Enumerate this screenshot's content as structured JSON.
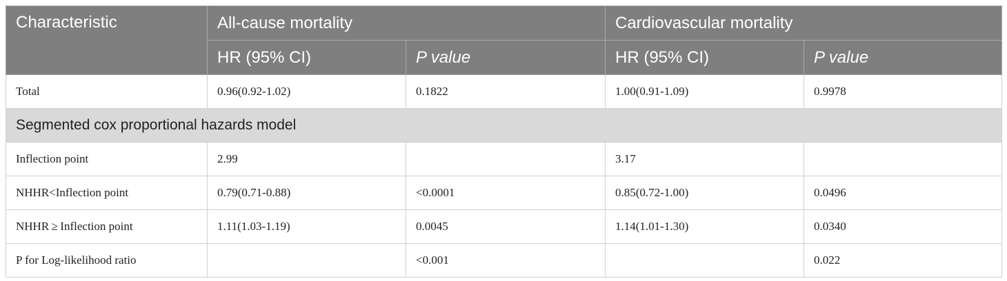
{
  "table": {
    "header": [
      [
        "Characteristic",
        "All-cause mortality",
        "Cardiovascular mortality"
      ],
      [
        "HR (95% CI)",
        "P value",
        "HR (95% CI)",
        "P value"
      ]
    ],
    "body": [
      {
        "cells": [
          "Total",
          "0.96(0.92-1.02)",
          "0.1822",
          "1.00(0.91-1.09)",
          "0.9978"
        ]
      },
      {
        "section": "Segmented cox proportional hazards model"
      },
      {
        "cells": [
          "Inflection point",
          "2.99",
          null,
          "3.17",
          null
        ]
      },
      {
        "cells": [
          "NHHR<Inflection point",
          "0.79(0.71-0.88)",
          "<0.0001",
          "0.85(0.72-1.00)",
          "0.0496"
        ]
      },
      {
        "cells": [
          "NHHR ≥ Inflection point",
          "1.11(1.03-1.19)",
          "0.0045",
          "1.14(1.01-1.30)",
          "0.0340"
        ]
      },
      {
        "cells": [
          "P for Log-likelihood ratio",
          null,
          "<0.001",
          null,
          "0.022"
        ]
      }
    ]
  }
}
